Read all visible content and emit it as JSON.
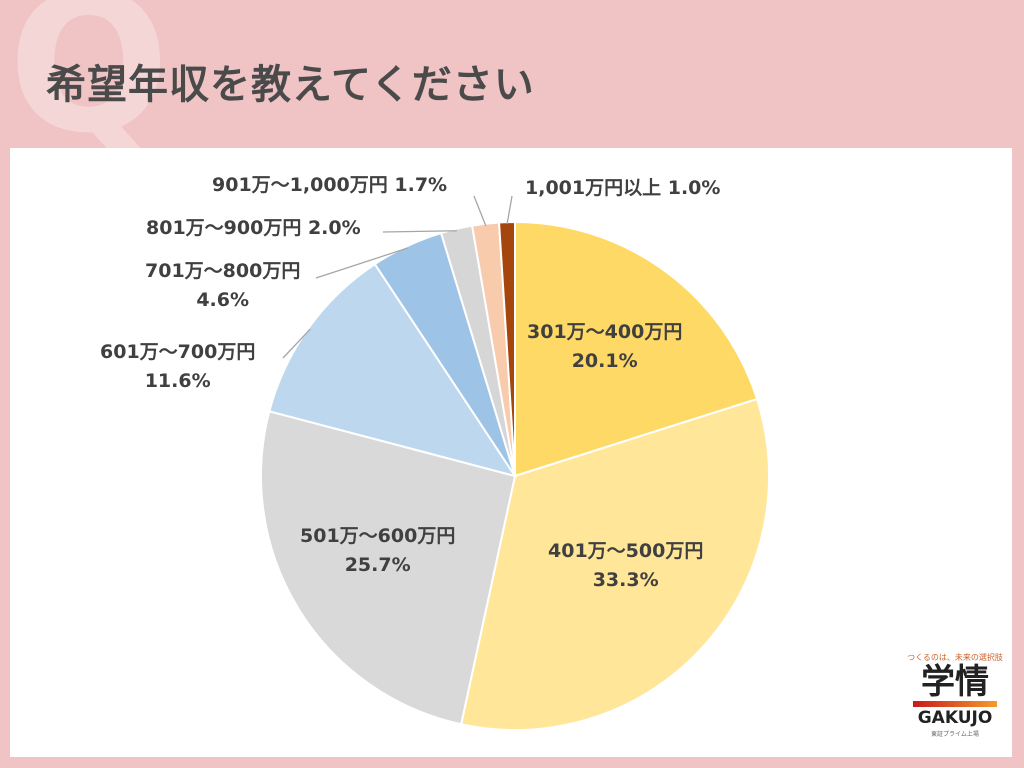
{
  "title": "希望年収を教えてください",
  "decor_letter": "Q",
  "logo": {
    "tagline": "つくるのは、未来の選択肢",
    "name_jp": "学情",
    "name_en": "GAKUJO",
    "sub": "東証プライム上場"
  },
  "chart_data": {
    "type": "pie",
    "start": "top",
    "direction": "clockwise",
    "categories": [
      "301万～400万円",
      "401万～500万円",
      "501万～600万円",
      "601万～700万円",
      "701万～800万円",
      "801万～900万円",
      "901万～1,000万円",
      "1,001万円以上"
    ],
    "values": [
      20.1,
      33.3,
      25.7,
      11.6,
      4.6,
      2.0,
      1.7,
      1.0
    ],
    "labels": [
      "20.1%",
      "33.3%",
      "25.7%",
      "11.6%",
      "4.6%",
      "2.0%",
      "1.7%",
      "1.0%"
    ],
    "colors": [
      "#ffd966",
      "#ffe699",
      "#d9d9d9",
      "#bdd7ee",
      "#9dc3e6",
      "#d6d6d6",
      "#f8cbad",
      "#a5460f"
    ]
  }
}
